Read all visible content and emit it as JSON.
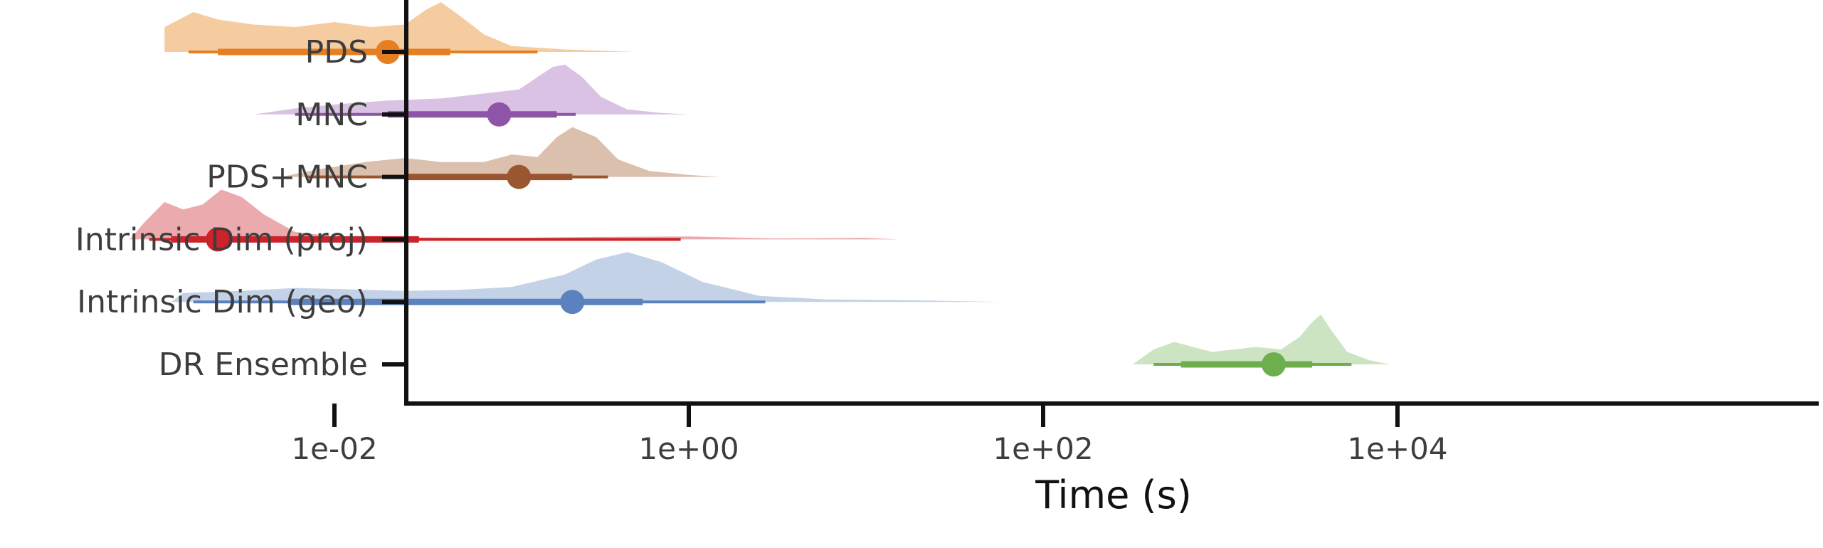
{
  "chart_data": {
    "type": "raincloud",
    "orientation": "horizontal",
    "xlabel": "Time (s)",
    "x_scale": "log10",
    "xlim": [
      0.0003,
      20000
    ],
    "x_ticks": [
      {
        "value": 0.01,
        "label": "1e-02"
      },
      {
        "value": 1,
        "label": "1e+00"
      },
      {
        "value": 100,
        "label": "1e+02"
      },
      {
        "value": 10000,
        "label": "1e+04"
      }
    ],
    "grid": false,
    "legend": "none",
    "categories": [
      "PDS",
      "MNC",
      "PDS+MNC",
      "Intrinsic Dim (proj)",
      "Intrinsic Dim (geo)",
      "DR Ensemble"
    ],
    "series": [
      {
        "category": "PDS",
        "color": "#E67E22",
        "fill": "#F5CBA0",
        "median": 0.02,
        "interval_66": [
          0.0022,
          0.045
        ],
        "interval_95": [
          0.0015,
          0.14
        ],
        "density": [
          [
            0.0011,
            0.5
          ],
          [
            0.0016,
            0.8
          ],
          [
            0.0022,
            0.65
          ],
          [
            0.0035,
            0.55
          ],
          [
            0.006,
            0.5
          ],
          [
            0.01,
            0.6
          ],
          [
            0.016,
            0.5
          ],
          [
            0.025,
            0.55
          ],
          [
            0.033,
            0.85
          ],
          [
            0.04,
            1.0
          ],
          [
            0.05,
            0.75
          ],
          [
            0.07,
            0.35
          ],
          [
            0.1,
            0.12
          ],
          [
            0.2,
            0.05
          ],
          [
            0.5,
            0.0
          ]
        ]
      },
      {
        "category": "MNC",
        "color": "#8E54A8",
        "fill": "#D9C2E3",
        "median": 0.085,
        "interval_66": [
          0.02,
          0.18
        ],
        "interval_95": [
          0.006,
          0.23
        ],
        "density": [
          [
            0.0035,
            0.0
          ],
          [
            0.006,
            0.12
          ],
          [
            0.01,
            0.2
          ],
          [
            0.02,
            0.28
          ],
          [
            0.04,
            0.32
          ],
          [
            0.07,
            0.42
          ],
          [
            0.11,
            0.5
          ],
          [
            0.14,
            0.75
          ],
          [
            0.17,
            0.95
          ],
          [
            0.2,
            1.0
          ],
          [
            0.25,
            0.75
          ],
          [
            0.32,
            0.35
          ],
          [
            0.45,
            0.1
          ],
          [
            0.7,
            0.03
          ],
          [
            1.0,
            0.0
          ]
        ]
      },
      {
        "category": "PDS+MNC",
        "color": "#9A5630",
        "fill": "#DCC0AE",
        "median": 0.11,
        "interval_66": [
          0.025,
          0.22
        ],
        "interval_95": [
          0.007,
          0.35
        ],
        "density": [
          [
            0.005,
            0.0
          ],
          [
            0.008,
            0.15
          ],
          [
            0.015,
            0.3
          ],
          [
            0.025,
            0.38
          ],
          [
            0.04,
            0.3
          ],
          [
            0.07,
            0.3
          ],
          [
            0.1,
            0.45
          ],
          [
            0.14,
            0.4
          ],
          [
            0.18,
            0.8
          ],
          [
            0.22,
            1.0
          ],
          [
            0.3,
            0.8
          ],
          [
            0.4,
            0.35
          ],
          [
            0.6,
            0.12
          ],
          [
            1.0,
            0.04
          ],
          [
            1.5,
            0.0
          ]
        ]
      },
      {
        "category": "Intrinsic Dim (proj)",
        "color": "#CC2229",
        "fill": "#EBAAAE",
        "median": 0.0022,
        "interval_66": [
          0.0012,
          0.03
        ],
        "interval_95": [
          0.0009,
          0.9
        ],
        "density": [
          [
            0.0007,
            0.0
          ],
          [
            0.00085,
            0.35
          ],
          [
            0.0011,
            0.75
          ],
          [
            0.0014,
            0.6
          ],
          [
            0.0018,
            0.7
          ],
          [
            0.0023,
            1.0
          ],
          [
            0.003,
            0.85
          ],
          [
            0.004,
            0.5
          ],
          [
            0.006,
            0.15
          ],
          [
            0.01,
            0.06
          ],
          [
            0.03,
            0.04
          ],
          [
            0.1,
            0.03
          ],
          [
            0.3,
            0.05
          ],
          [
            1.0,
            0.06
          ],
          [
            3.0,
            0.02
          ],
          [
            10.0,
            0.03
          ],
          [
            15.0,
            0.0
          ]
        ]
      },
      {
        "category": "Intrinsic Dim (geo)",
        "color": "#5B82BE",
        "fill": "#C3D2E6",
        "median": 0.22,
        "interval_66": [
          0.0055,
          0.55
        ],
        "interval_95": [
          0.0016,
          2.7
        ],
        "density": [
          [
            0.0012,
            0.0
          ],
          [
            0.0014,
            0.18
          ],
          [
            0.003,
            0.22
          ],
          [
            0.006,
            0.28
          ],
          [
            0.01,
            0.26
          ],
          [
            0.025,
            0.22
          ],
          [
            0.05,
            0.24
          ],
          [
            0.1,
            0.3
          ],
          [
            0.2,
            0.55
          ],
          [
            0.3,
            0.85
          ],
          [
            0.45,
            1.0
          ],
          [
            0.7,
            0.8
          ],
          [
            1.2,
            0.4
          ],
          [
            2.5,
            0.12
          ],
          [
            6.0,
            0.05
          ],
          [
            20.0,
            0.03
          ],
          [
            60.0,
            0.0
          ]
        ]
      },
      {
        "category": "DR Ensemble",
        "color": "#6DAE4F",
        "fill": "#CDE4C2",
        "median": 2000,
        "interval_66": [
          600,
          3300
        ],
        "interval_95": [
          420,
          5500
        ],
        "density": [
          [
            320,
            0.0
          ],
          [
            420,
            0.3
          ],
          [
            550,
            0.45
          ],
          [
            700,
            0.35
          ],
          [
            900,
            0.25
          ],
          [
            1200,
            0.3
          ],
          [
            1600,
            0.35
          ],
          [
            2200,
            0.3
          ],
          [
            2800,
            0.55
          ],
          [
            3300,
            0.85
          ],
          [
            3700,
            1.0
          ],
          [
            4200,
            0.7
          ],
          [
            5200,
            0.25
          ],
          [
            7000,
            0.08
          ],
          [
            9000,
            0.0
          ]
        ]
      }
    ]
  }
}
